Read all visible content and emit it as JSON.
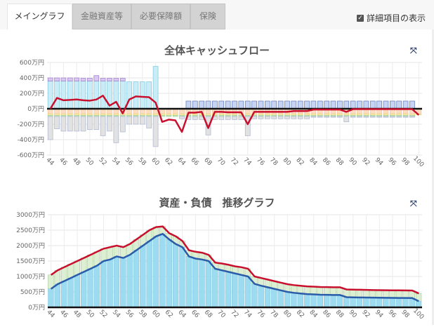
{
  "tabs": [
    {
      "label": "メイングラフ",
      "active": true
    },
    {
      "label": "金融資産等",
      "active": false
    },
    {
      "label": "必要保障額",
      "active": false
    },
    {
      "label": "保険",
      "active": false
    }
  ],
  "detail_toggle": {
    "label": "詳細項目の表示",
    "checked": true
  },
  "cashflow_chart_title": "全体キャッシュフロー",
  "balance_chart_title": "資産・負債　推移グラフ",
  "chart_data": [
    {
      "type": "bar",
      "title": "全体キャッシュフロー",
      "categories_from": 44,
      "categories_to": 100,
      "yticks": [
        "600万円",
        "400万円",
        "200万円",
        "0万円",
        "-200万円",
        "-400万円",
        "-600万円"
      ],
      "ylim": [
        -600,
        600
      ],
      "xticks": [
        "44",
        "46",
        "48",
        "50",
        "52",
        "54",
        "56",
        "58",
        "60",
        "62",
        "64",
        "66",
        "68",
        "70",
        "72",
        "74",
        "76",
        "78",
        "80",
        "82",
        "84",
        "86",
        "88",
        "90",
        "92",
        "94",
        "96",
        "98",
        "100"
      ],
      "colors": {
        "income": "#c9ecf6",
        "other_income": "#d9c6f2",
        "pension": "#c7d3f3",
        "living": "#fbdcc0",
        "yellow": "#fbf0b8",
        "green": "#d3ebcc",
        "gray": "#e2e2e2",
        "net": "#c8102e"
      },
      "series": {
        "income": [
          360,
          360,
          360,
          360,
          360,
          360,
          360,
          360,
          360,
          360,
          360,
          360,
          350,
          350,
          350,
          350,
          550,
          0,
          0,
          0,
          0,
          0,
          0,
          0,
          0,
          0,
          0,
          0,
          0,
          0,
          0,
          0,
          0,
          0,
          0,
          0,
          0,
          0,
          0,
          0,
          0,
          0,
          0,
          0,
          0,
          0,
          0,
          0,
          0,
          0,
          0,
          0,
          0,
          0,
          0,
          0,
          0
        ],
        "other_income": [
          40,
          40,
          40,
          40,
          40,
          35,
          35,
          70,
          35,
          35,
          35,
          35,
          0,
          0,
          0,
          0,
          0,
          0,
          0,
          0,
          0,
          0,
          0,
          0,
          0,
          0,
          0,
          0,
          0,
          0,
          0,
          0,
          0,
          0,
          0,
          0,
          0,
          0,
          0,
          0,
          0,
          0,
          0,
          0,
          0,
          0,
          0,
          0,
          0,
          0,
          0,
          0,
          0,
          0,
          0,
          0,
          0
        ],
        "pension": [
          0,
          0,
          0,
          0,
          0,
          0,
          0,
          0,
          0,
          0,
          0,
          0,
          0,
          0,
          0,
          0,
          0,
          0,
          0,
          0,
          0,
          100,
          100,
          100,
          100,
          100,
          100,
          100,
          100,
          100,
          100,
          100,
          100,
          100,
          100,
          100,
          100,
          100,
          100,
          100,
          100,
          100,
          100,
          100,
          100,
          100,
          100,
          100,
          100,
          100,
          100,
          100,
          100,
          100,
          100,
          100,
          0
        ],
        "expense_total": [
          -400,
          -260,
          -290,
          -290,
          -290,
          -290,
          -270,
          -270,
          -350,
          -290,
          -440,
          -300,
          -200,
          -200,
          -200,
          -250,
          -490,
          -100,
          -100,
          -100,
          -130,
          -140,
          -140,
          -140,
          -340,
          -140,
          -140,
          -140,
          -140,
          -140,
          -350,
          -130,
          -130,
          -130,
          -130,
          -130,
          -130,
          -130,
          -130,
          -130,
          -110,
          -110,
          -110,
          -110,
          -110,
          -170,
          -110,
          -110,
          -110,
          -110,
          -110,
          -110,
          -110,
          -110,
          -110,
          -110,
          -80
        ],
        "net": [
          0,
          140,
          110,
          115,
          120,
          110,
          105,
          120,
          170,
          40,
          90,
          -60,
          120,
          160,
          155,
          150,
          80,
          -170,
          -140,
          -150,
          -300,
          -50,
          -50,
          -40,
          -250,
          -40,
          -40,
          -45,
          -45,
          -45,
          -200,
          -40,
          -40,
          -40,
          -40,
          -40,
          -40,
          -30,
          -30,
          -30,
          -10,
          -10,
          -10,
          -10,
          -10,
          -40,
          -5,
          -5,
          -5,
          -5,
          -5,
          -5,
          -5,
          -5,
          -5,
          -5,
          -80
        ]
      }
    },
    {
      "type": "area",
      "title": "資産・負債　推移グラフ",
      "categories_from": 44,
      "categories_to": 100,
      "yticks": [
        "3000万円",
        "2500万円",
        "2000万円",
        "1500万円",
        "1000万円",
        "500万円",
        "0万円"
      ],
      "ylim": [
        0,
        3000
      ],
      "xticks": [
        "44",
        "46",
        "48",
        "50",
        "52",
        "54",
        "56",
        "58",
        "60",
        "62",
        "64",
        "66",
        "68",
        "70",
        "72",
        "74",
        "76",
        "78",
        "80",
        "82",
        "84",
        "86",
        "88",
        "90",
        "92",
        "94",
        "96",
        "98",
        "100"
      ],
      "colors": {
        "assets": "#9ddbf0",
        "other": "#dcefd2",
        "assets_line": "#2a5caa",
        "total_line": "#c8102e"
      },
      "series": {
        "assets": [
          600,
          750,
          850,
          950,
          1050,
          1150,
          1250,
          1350,
          1500,
          1550,
          1650,
          1600,
          1700,
          1850,
          2000,
          2150,
          2300,
          2380,
          2200,
          2050,
          1950,
          1650,
          1580,
          1550,
          1500,
          1250,
          1200,
          1150,
          1100,
          1050,
          1000,
          760,
          700,
          650,
          600,
          550,
          500,
          470,
          450,
          430,
          420,
          410,
          405,
          400,
          400,
          330,
          325,
          320,
          318,
          315,
          312,
          310,
          308,
          305,
          303,
          300,
          200
        ],
        "total": [
          1050,
          1200,
          1300,
          1400,
          1500,
          1600,
          1700,
          1800,
          1900,
          1950,
          2000,
          1950,
          2050,
          2200,
          2350,
          2500,
          2600,
          2620,
          2400,
          2300,
          2150,
          1850,
          1800,
          1770,
          1700,
          1450,
          1420,
          1380,
          1330,
          1300,
          1250,
          1000,
          950,
          900,
          850,
          800,
          750,
          720,
          700,
          680,
          670,
          660,
          655,
          650,
          650,
          580,
          575,
          570,
          565,
          560,
          558,
          555,
          552,
          550,
          548,
          545,
          450
        ]
      }
    }
  ]
}
